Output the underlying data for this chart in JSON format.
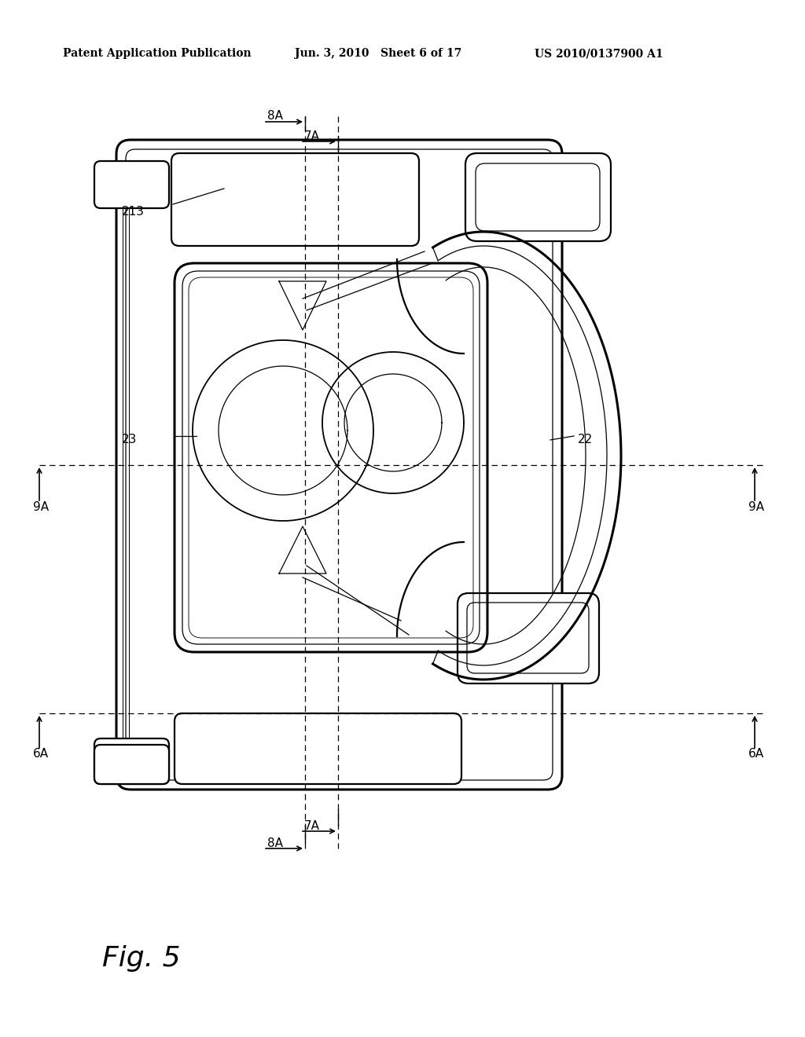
{
  "background_color": "#ffffff",
  "line_color": "#000000",
  "header_left": "Patent Application Publication",
  "header_mid": "Jun. 3, 2010   Sheet 6 of 17",
  "header_right": "US 2010/0137900 A1",
  "figure_label": "Fig. 5"
}
